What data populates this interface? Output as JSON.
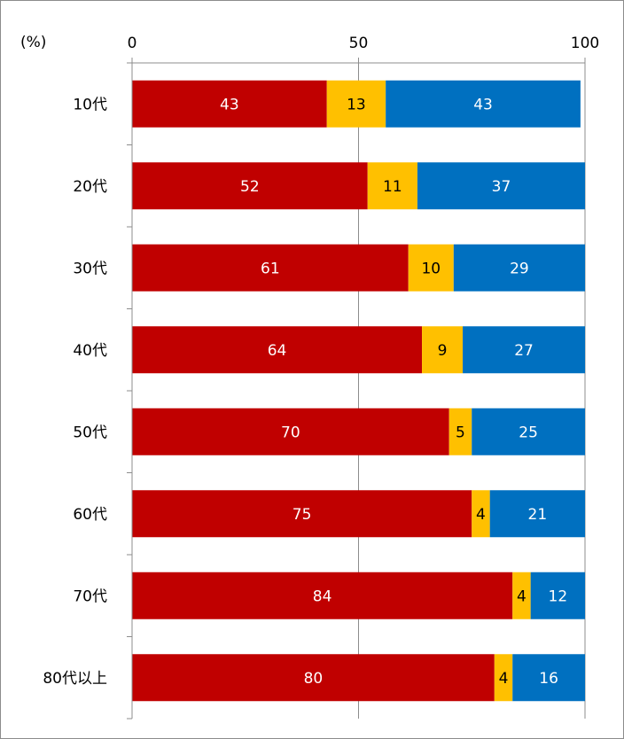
{
  "unit_label": "(%)",
  "colors": {
    "series1": "#C00000",
    "series2": "#FFC000",
    "series3": "#0070C0",
    "label_on_dark": "#ffffff",
    "label_on_light": "#000000",
    "axis": "#8c8c8c",
    "grid": "#8c8c8c"
  },
  "chart_data": {
    "type": "bar",
    "orientation": "horizontal",
    "stacked": true,
    "categories": [
      "10代",
      "20代",
      "30代",
      "40代",
      "50代",
      "60代",
      "70代",
      "80代以上"
    ],
    "series": [
      {
        "values": [
          43,
          52,
          61,
          64,
          70,
          75,
          84,
          80
        ]
      },
      {
        "values": [
          13,
          11,
          10,
          9,
          5,
          4,
          4,
          4
        ]
      },
      {
        "values": [
          43,
          37,
          29,
          27,
          25,
          21,
          12,
          16
        ]
      }
    ],
    "xlim": [
      0,
      100
    ],
    "x_ticks": [
      0,
      50,
      100
    ],
    "x_tick_labels": [
      "0",
      "50",
      "100"
    ],
    "axis_position": "top",
    "grid": true,
    "legend": "none"
  }
}
